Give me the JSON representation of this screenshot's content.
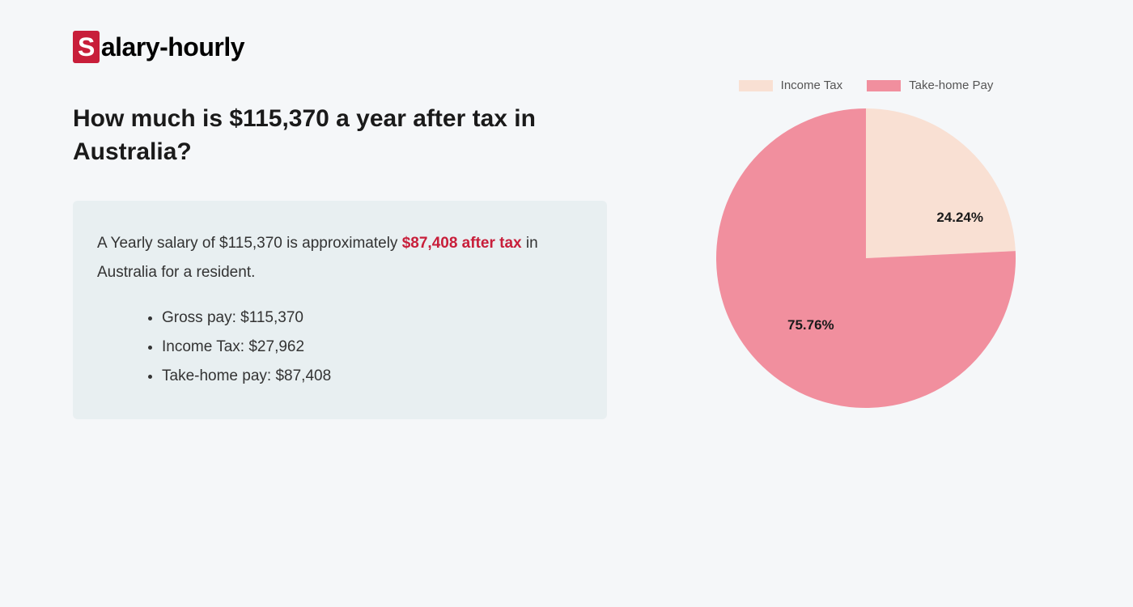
{
  "logo": {
    "first_char": "S",
    "rest": "alary-hourly"
  },
  "heading": "How much is $115,370 a year after tax in Australia?",
  "summary": {
    "text_before": "A Yearly salary of $115,370 is approximately ",
    "highlight": "$87,408 after tax",
    "text_after": " in Australia for a resident.",
    "items": [
      "Gross pay: $115,370",
      "Income Tax: $27,962",
      "Take-home pay: $87,408"
    ]
  },
  "chart": {
    "type": "pie",
    "legend": [
      {
        "label": "Income Tax",
        "color": "#f9e0d3"
      },
      {
        "label": "Take-home Pay",
        "color": "#f18f9e"
      }
    ],
    "slices": [
      {
        "name": "income_tax",
        "value": 24.24,
        "label": "24.24%",
        "color": "#f9e0d3"
      },
      {
        "name": "take_home",
        "value": 75.76,
        "label": "75.76%",
        "color": "#f18f9e"
      }
    ],
    "background_color": "#f5f7f9",
    "label_fontsize": 17,
    "label_fontweight": 700,
    "label_color": "#1a1a1a",
    "legend_fontsize": 15,
    "legend_color": "#555",
    "radius": 185
  },
  "styling": {
    "page_bg": "#f5f7f9",
    "summary_bg": "#e8eff1",
    "highlight_color": "#c81e3a",
    "heading_color": "#1a1a1a",
    "text_color": "#333",
    "heading_fontsize": 30,
    "body_fontsize": 19
  }
}
